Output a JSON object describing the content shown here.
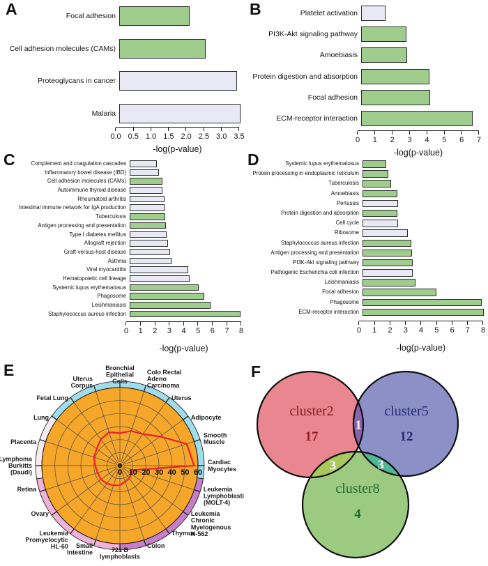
{
  "figure": {
    "panel_letters": [
      "A",
      "B",
      "C",
      "D",
      "E",
      "F"
    ]
  },
  "palette": {
    "green": "#9ecd8e",
    "lavender": "#e9e9f6",
    "bar_border": "#2b2b2b",
    "radar_fill": "#f6a628",
    "radar_line": "#e8262b",
    "axis_color": "#1a1a1a"
  },
  "chart_data": [
    {
      "panel": "A",
      "type": "bar",
      "orientation": "horizontal",
      "xlabel": "-log(p-value)",
      "xlim": [
        0,
        3.5
      ],
      "xticks": [
        "0.0",
        "0.5",
        "1.0",
        "1.5",
        "2.0",
        "2.5",
        "3.0",
        "3.5"
      ],
      "bars": [
        {
          "label": "Focal adhesion",
          "value": 2.0,
          "color": "green"
        },
        {
          "label": "Cell adhesion molecules (CAMs)",
          "value": 2.45,
          "color": "green"
        },
        {
          "label": "Proteoglycans in cancer",
          "value": 3.35,
          "color": "lavender"
        },
        {
          "label": "Malaria",
          "value": 3.45,
          "color": "lavender"
        }
      ]
    },
    {
      "panel": "B",
      "type": "bar",
      "orientation": "horizontal",
      "xlabel": "-log(p-value)",
      "xlim": [
        0,
        7
      ],
      "xticks": [
        "0",
        "1",
        "2",
        "3",
        "4",
        "5",
        "6",
        "7"
      ],
      "bars": [
        {
          "label": "Platelet activation",
          "value": 1.4,
          "color": "lavender"
        },
        {
          "label": "PI3K-Akt signaling pathway",
          "value": 2.6,
          "color": "green"
        },
        {
          "label": "Amoebiasis",
          "value": 2.65,
          "color": "green"
        },
        {
          "label": "Protein digestion and absorption",
          "value": 3.95,
          "color": "green"
        },
        {
          "label": "Focal adhesion",
          "value": 4.0,
          "color": "green"
        },
        {
          "label": "ECM-receptor interaction",
          "value": 6.45,
          "color": "green"
        }
      ]
    },
    {
      "panel": "C",
      "type": "bar",
      "orientation": "horizontal",
      "xlabel": "-log(p-value)",
      "xlim": [
        0,
        8
      ],
      "xticks": [
        "0",
        "1",
        "2",
        "3",
        "4",
        "5",
        "6",
        "7",
        "8"
      ],
      "bars": [
        {
          "label": "Complement and coagulation cascades",
          "value": 1.9,
          "color": "lavender"
        },
        {
          "label": "Inflammatory bowel disease (IBD)",
          "value": 2.05,
          "color": "lavender"
        },
        {
          "label": "Cell adhesion molecules (CAMs)",
          "value": 2.3,
          "color": "green"
        },
        {
          "label": "Autoimmune thyroid disease",
          "value": 2.3,
          "color": "lavender"
        },
        {
          "label": "Rheumatoid arthritis",
          "value": 2.4,
          "color": "lavender"
        },
        {
          "label": "Intestinal immune network for IgA production",
          "value": 2.4,
          "color": "lavender"
        },
        {
          "label": "Tuberculosis",
          "value": 2.45,
          "color": "green"
        },
        {
          "label": "Antigen processing and presentation",
          "value": 2.5,
          "color": "green"
        },
        {
          "label": "Type I diabetes mellitus",
          "value": 2.55,
          "color": "lavender"
        },
        {
          "label": "Allograft rejection",
          "value": 2.65,
          "color": "lavender"
        },
        {
          "label": "Graft-versus-host disease",
          "value": 2.8,
          "color": "lavender"
        },
        {
          "label": "Asthma",
          "value": 2.9,
          "color": "lavender"
        },
        {
          "label": "Viral myocarditis",
          "value": 4.05,
          "color": "lavender"
        },
        {
          "label": "Hematopoietic cell lineage",
          "value": 4.15,
          "color": "lavender"
        },
        {
          "label": "Systemic lupus erythematosus",
          "value": 4.8,
          "color": "green"
        },
        {
          "label": "Phagosome",
          "value": 5.2,
          "color": "green"
        },
        {
          "label": "Leishmaniasis",
          "value": 5.6,
          "color": "green"
        },
        {
          "label": "Staphylococcus aureus infection",
          "value": 7.7,
          "color": "green"
        }
      ]
    },
    {
      "panel": "D",
      "type": "bar",
      "orientation": "horizontal",
      "xlabel": "-log(p-value)",
      "xlim": [
        0,
        8
      ],
      "xticks": [
        "0",
        "1",
        "2",
        "3",
        "4",
        "5",
        "6",
        "7",
        "8"
      ],
      "bars": [
        {
          "label": "Systemic lupus erythematosus",
          "value": 1.55,
          "color": "green"
        },
        {
          "label": "Protein processing in endoplasmic reticulum",
          "value": 1.65,
          "color": "green"
        },
        {
          "label": "Tuberculosis",
          "value": 1.85,
          "color": "green"
        },
        {
          "label": "Amoebiasis",
          "value": 2.25,
          "color": "green"
        },
        {
          "label": "Pertussis",
          "value": 2.3,
          "color": "lavender"
        },
        {
          "label": "Protein digestion and absorption",
          "value": 2.25,
          "color": "green"
        },
        {
          "label": "Cell cycle",
          "value": 2.3,
          "color": "lavender"
        },
        {
          "label": "Ribosome",
          "value": 2.9,
          "color": "lavender"
        },
        {
          "label": "Staphylococcus aureus infection",
          "value": 3.15,
          "color": "green"
        },
        {
          "label": "Antigen processing and presentation",
          "value": 3.2,
          "color": "green"
        },
        {
          "label": "PI3K-Akt signaling pathway",
          "value": 3.25,
          "color": "green"
        },
        {
          "label": "Pathogenic Escherichia coli infection",
          "value": 3.25,
          "color": "lavender"
        },
        {
          "label": "Leishmaniasis",
          "value": 3.4,
          "color": "green"
        },
        {
          "label": "Focal adhesion",
          "value": 4.75,
          "color": "green"
        },
        {
          "label": "Phagosome",
          "value": 7.7,
          "color": "green"
        },
        {
          "label": "ECM-receptor interaction",
          "value": 7.8,
          "color": "green"
        }
      ]
    },
    {
      "panel": "E",
      "type": "radar",
      "rmax": 60,
      "rticks": [
        0,
        10,
        20,
        30,
        40,
        50,
        60
      ],
      "fill_color": "#f6a628",
      "series_color": "#e8262b",
      "ring_segments": [
        {
          "from": -54,
          "to": 99,
          "color": "#9fdcec"
        },
        {
          "from": 99,
          "to": 180,
          "color": "#c77ec8"
        },
        {
          "from": 180,
          "to": 261,
          "color": "#edb3d8"
        },
        {
          "from": 261,
          "to": 306,
          "color": "#f5ecf2"
        }
      ],
      "axes": [
        {
          "label": [
            "Bronchial",
            "Epithelial",
            "Cells"
          ],
          "value": 25
        },
        {
          "label": [
            "Colo Rectal",
            "Adeno",
            "Carcinoma"
          ],
          "value": 28
        },
        {
          "label": [
            "Uterus"
          ],
          "value": 30
        },
        {
          "label": [
            "Adipocyte"
          ],
          "value": 38
        },
        {
          "label": [
            "Smooth",
            "Muscle"
          ],
          "value": 54
        },
        {
          "label": [
            "Cardiac",
            "Myocytes"
          ],
          "value": 57
        },
        {
          "label": [
            "Leukemia",
            "Lymphoblastic",
            "(MOLT-4)"
          ],
          "value": 11
        },
        {
          "label": [
            "Leukemia",
            "Chronic",
            "Myelogenous",
            "K-562"
          ],
          "value": 11
        },
        {
          "label": [
            "Thymus"
          ],
          "value": 12
        },
        {
          "label": [
            "Colon"
          ],
          "value": 13
        },
        {
          "label": [
            "721 B",
            "lymphoblasts"
          ],
          "value": 15
        },
        {
          "label": [
            "Small",
            "Intestine"
          ],
          "value": 16
        },
        {
          "label": [
            "Leukemia",
            "Promyelocytic",
            "HL-60"
          ],
          "value": 17
        },
        {
          "label": [
            "Ovary"
          ],
          "value": 18
        },
        {
          "label": [
            "Retina"
          ],
          "value": 18
        },
        {
          "label": [
            "Lymphoma",
            "Burkitts",
            "(Daudi)"
          ],
          "value": 19
        },
        {
          "label": [
            "Placenta"
          ],
          "value": 21
        },
        {
          "label": [
            "Lung"
          ],
          "value": 22
        },
        {
          "label": [
            "Fetal Lung"
          ],
          "value": 25
        },
        {
          "label": [
            "Uterus",
            "Corpus"
          ],
          "value": 27
        }
      ]
    },
    {
      "panel": "F",
      "type": "venn",
      "sets": [
        {
          "name": "cluster2",
          "count": 17,
          "fill": "#e9868f",
          "label_color": "#8f1d1d"
        },
        {
          "name": "cluster5",
          "count": 12,
          "fill": "#8b90c7",
          "label_color": "#232a78"
        },
        {
          "name": "cluster8",
          "count": 4,
          "fill": "#9dca81",
          "label_color": "#1d6b35"
        }
      ],
      "overlaps": [
        {
          "sets": [
            "cluster2",
            "cluster5"
          ],
          "count": 1,
          "fill": "#8a63b0"
        },
        {
          "sets": [
            "cluster2",
            "cluster8"
          ],
          "count": 3,
          "fill": "#a9c85b"
        },
        {
          "sets": [
            "cluster5",
            "cluster8"
          ],
          "count": 3,
          "fill": "#4fb795"
        }
      ],
      "overlap_label_color": "#ffffff"
    }
  ]
}
